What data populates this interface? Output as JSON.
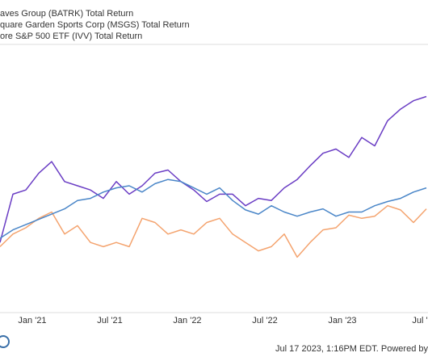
{
  "chart_data": {
    "type": "line",
    "categories": [
      null,
      null,
      null,
      "Jan '21",
      null,
      null,
      null,
      null,
      null,
      "Jul '21",
      null,
      null,
      null,
      null,
      null,
      "Jan '22",
      null,
      null,
      null,
      null,
      null,
      "Jul '22",
      null,
      null,
      null,
      null,
      null,
      "Jan '23",
      null,
      null,
      null,
      null,
      null,
      "Jul '"
    ],
    "ylim": [
      -80,
      180
    ],
    "series": [
      {
        "name": "aves Group (BATRK) Total Return",
        "color": "#6a3dc4",
        "values": [
          -14,
          32,
          36,
          52,
          63,
          44,
          40,
          36,
          28,
          44,
          32,
          40,
          52,
          55,
          44,
          36,
          25,
          32,
          32,
          21,
          28,
          26,
          38,
          46,
          59,
          71,
          75,
          67,
          86,
          78,
          102,
          113,
          121,
          125
        ]
      },
      {
        "name": "quare Garden Sports Corp (MSGS) Total Return",
        "color": "#f4a36e",
        "values": [
          -18,
          -6,
          0,
          9,
          15,
          -6,
          2,
          -14,
          -18,
          -14,
          -18,
          9,
          5,
          -6,
          -2,
          -6,
          5,
          9,
          -6,
          -14,
          -22,
          -18,
          -6,
          -28,
          -14,
          -2,
          0,
          12,
          9,
          11,
          21,
          17,
          5,
          18
        ]
      },
      {
        "name": "ore S&P 500 ETF (IVV) Total Return",
        "color": "#4a86c8",
        "values": [
          -10,
          -2,
          3,
          8,
          13,
          18,
          26,
          28,
          34,
          38,
          40,
          34,
          42,
          46,
          44,
          38,
          32,
          38,
          26,
          17,
          13,
          21,
          15,
          11,
          15,
          18,
          11,
          15,
          15,
          21,
          25,
          28,
          34,
          38
        ]
      }
    ],
    "footer": "Jul 17 2023, 1:16PM EDT. Powered by"
  }
}
